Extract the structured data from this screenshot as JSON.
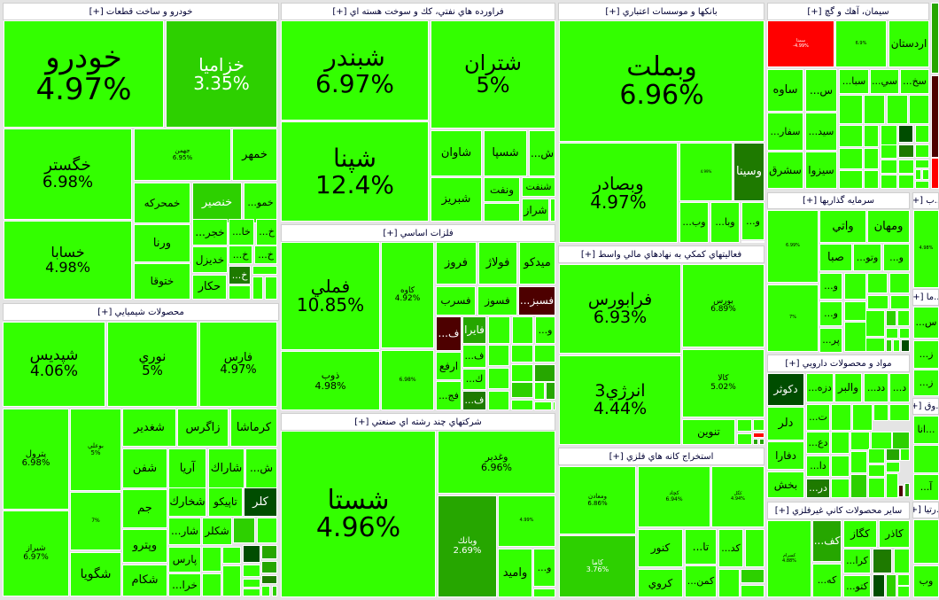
{
  "tones": {
    "b": "#33ff00",
    "m": "#2dd000",
    "g": "#26a600",
    "d": "#1e7a00",
    "x": "#004d00",
    "r": "#ff0000",
    "n": "#4d0000"
  },
  "sectors": [
    {
      "title": "خودرو و ساخت قطعات [+]",
      "tiles": [
        {
          "label": "خودرو",
          "pct": "4.97%",
          "tone": "b"
        },
        {
          "label": "خزاميا",
          "pct": "3.35%",
          "tone": "m"
        },
        {
          "label": "خگستر",
          "pct": "6.98%",
          "tone": "b"
        },
        {
          "label": "خسابا",
          "pct": "4.98%",
          "tone": "b"
        },
        {
          "label": "جهمن",
          "pct": "6.95%",
          "tone": "b"
        },
        {
          "label": "خمهر",
          "tone": "b"
        },
        {
          "label": "خمحركه",
          "tone": "b"
        },
        {
          "label": "خنصير",
          "tone": "m"
        },
        {
          "label": "خمو...",
          "tone": "b"
        },
        {
          "label": "ورنا",
          "tone": "b"
        },
        {
          "label": "ختوقا",
          "tone": "b"
        },
        {
          "label": "خجر...",
          "tone": "b"
        },
        {
          "label": "خا...",
          "tone": "b"
        },
        {
          "label": "خ...",
          "tone": "b"
        },
        {
          "label": "خديزل",
          "tone": "b"
        },
        {
          "label": "خ...",
          "tone": "b"
        },
        {
          "label": "خ...",
          "tone": "b"
        },
        {
          "label": "خ...",
          "tone": "d"
        },
        {
          "label": "حكار",
          "tone": "b"
        }
      ]
    },
    {
      "title": "محصولات شيميايي [+]",
      "tiles": [
        {
          "label": "شپديس",
          "pct": "4.06%",
          "tone": "b"
        },
        {
          "label": "نوري",
          "pct": "5%",
          "tone": "b"
        },
        {
          "label": "فارس",
          "pct": "4.97%",
          "tone": "b"
        },
        {
          "label": "پترول",
          "pct": "6.98%",
          "tone": "b"
        },
        {
          "label": "شيراز",
          "pct": "6.97%",
          "tone": "b"
        },
        {
          "label": "بوعلي",
          "pct": "5%",
          "tone": "b"
        },
        {
          "pct": "7%",
          "tone": "b"
        },
        {
          "label": "شگويا",
          "tone": "b"
        },
        {
          "label": "شغدير",
          "tone": "b"
        },
        {
          "label": "زاگرس",
          "tone": "b"
        },
        {
          "label": "كرماشا",
          "tone": "b"
        },
        {
          "label": "شفن",
          "tone": "b"
        },
        {
          "label": "آريا",
          "tone": "b"
        },
        {
          "label": "شاراك",
          "tone": "b"
        },
        {
          "label": "ش...",
          "tone": "b"
        },
        {
          "label": "جم",
          "tone": "b"
        },
        {
          "label": "شخارك",
          "tone": "b"
        },
        {
          "label": "تاپيكو",
          "tone": "b"
        },
        {
          "label": "كلر",
          "tone": "x"
        },
        {
          "label": "وپترو",
          "tone": "b"
        },
        {
          "label": "شكام",
          "tone": "b"
        },
        {
          "label": "شار...",
          "tone": "b"
        },
        {
          "label": "شكلر",
          "tone": "b"
        },
        {
          "label": "پارس",
          "tone": "b"
        },
        {
          "label": "خرا...",
          "tone": "b"
        }
      ]
    },
    {
      "title": "فراورده هاي نفتي، كك و سوخت هسته اي [+]",
      "tiles": [
        {
          "label": "شبندر",
          "pct": "6.97%",
          "tone": "b"
        },
        {
          "label": "شپنا",
          "pct": "12.4%",
          "tone": "b"
        },
        {
          "label": "شتران",
          "pct": "5%",
          "tone": "b"
        },
        {
          "label": "شاوان",
          "tone": "b"
        },
        {
          "label": "شسپا",
          "tone": "b"
        },
        {
          "label": "ش...",
          "tone": "b"
        },
        {
          "label": "شبريز",
          "tone": "b"
        },
        {
          "label": "ونفت",
          "tone": "b"
        },
        {
          "label": "شنفت",
          "tone": "b"
        },
        {
          "label": "شراز",
          "tone": "b"
        }
      ]
    },
    {
      "title": "فلزات اساسي [+]",
      "tiles": [
        {
          "label": "فملي",
          "pct": "10.85%",
          "tone": "b"
        },
        {
          "label": "ذوب",
          "pct": "4.98%",
          "tone": "b"
        },
        {
          "label": "كاوه",
          "pct": "4.92%",
          "tone": "b"
        },
        {
          "pct": "6.98%",
          "tone": "b"
        },
        {
          "label": "فروز",
          "tone": "b"
        },
        {
          "label": "فولاژ",
          "tone": "b"
        },
        {
          "label": "ميدكو",
          "tone": "b"
        },
        {
          "label": "فسرب",
          "tone": "b"
        },
        {
          "label": "فسوز",
          "tone": "b"
        },
        {
          "label": "فسبز...",
          "tone": "n"
        },
        {
          "label": "ف...",
          "tone": "n"
        },
        {
          "label": "فايرا",
          "tone": "g"
        },
        {
          "label": "و...",
          "tone": "b"
        },
        {
          "label": "ارفع",
          "tone": "b"
        },
        {
          "label": "فج...",
          "tone": "b"
        },
        {
          "label": "ف...",
          "tone": "b"
        },
        {
          "label": "ك...",
          "tone": "b"
        },
        {
          "label": "ف...",
          "tone": "d"
        }
      ]
    },
    {
      "title": "شركتهاي چند رشته اي صنعتي [+]",
      "tiles": [
        {
          "label": "شستا",
          "pct": "4.96%",
          "tone": "b"
        },
        {
          "label": "وغدير",
          "pct": "6.96%",
          "tone": "b"
        },
        {
          "label": "وبانك",
          "pct": "2.69%",
          "tone": "g"
        },
        {
          "pct": "4.99%",
          "tone": "b"
        },
        {
          "label": "واميد",
          "tone": "b"
        },
        {
          "label": "و...",
          "tone": "b"
        }
      ]
    },
    {
      "title": "بانكها و موسسات اعتباري [+]",
      "tiles": [
        {
          "label": "وبملت",
          "pct": "6.96%",
          "tone": "b"
        },
        {
          "label": "وبصادر",
          "pct": "4.97%",
          "tone": "b"
        },
        {
          "pct": "4.99%",
          "tone": "b"
        },
        {
          "label": "وسينا",
          "tone": "d"
        },
        {
          "label": "وب...",
          "tone": "b"
        },
        {
          "label": "وبا...",
          "tone": "b"
        },
        {
          "label": "و...",
          "tone": "b"
        }
      ]
    },
    {
      "title": "فعاليتهاي كمكي به نهادهاي مالي واسط [+]",
      "tiles": [
        {
          "label": "فرابورس",
          "pct": "6.93%",
          "tone": "b"
        },
        {
          "label": "انرژي3",
          "pct": "4.44%",
          "tone": "b"
        },
        {
          "label": "بورس",
          "pct": "6.89%",
          "tone": "b"
        },
        {
          "label": "كالا",
          "pct": "5.02%",
          "tone": "b"
        },
        {
          "label": "تنوين",
          "tone": "b"
        }
      ]
    },
    {
      "title": "استخراج كانه هاي فلزي [+]",
      "tiles": [
        {
          "label": "ومعادن",
          "pct": "6.86%",
          "tone": "b"
        },
        {
          "label": "كاما",
          "pct": "3.76%",
          "tone": "m"
        },
        {
          "label": "كچاد",
          "pct": "6.94%",
          "tone": "b"
        },
        {
          "label": "كگل",
          "pct": "4.94%",
          "tone": "b"
        },
        {
          "label": "كنور",
          "tone": "b"
        },
        {
          "label": "كروي",
          "tone": "b"
        },
        {
          "label": "تا...",
          "tone": "b"
        },
        {
          "label": "كمن...",
          "tone": "b"
        },
        {
          "label": "كد...",
          "tone": "b"
        }
      ]
    },
    {
      "title": "سيمان، آهك و گچ [+]",
      "tiles": [
        {
          "label": "سمتا",
          "pct": "-4.99%",
          "tone": "r"
        },
        {
          "pct": "6.9%",
          "tone": "b"
        },
        {
          "label": "اردستان",
          "tone": "b"
        },
        {
          "label": "ساوه",
          "tone": "b"
        },
        {
          "label": "س...",
          "tone": "b"
        },
        {
          "label": "سبا...",
          "tone": "b"
        },
        {
          "label": "سي...",
          "tone": "b"
        },
        {
          "label": "سخ...",
          "tone": "b"
        },
        {
          "label": "سفار...",
          "tone": "b"
        },
        {
          "label": "سيد...",
          "tone": "b"
        },
        {
          "label": "سشرق",
          "tone": "b"
        },
        {
          "label": "سيزوا",
          "tone": "b"
        }
      ]
    },
    {
      "title": "سرمايه گذاريها [+]",
      "tiles": [
        {
          "pct": "6.99%",
          "tone": "b"
        },
        {
          "pct": "7%",
          "tone": "b"
        },
        {
          "label": "واتي",
          "tone": "b"
        },
        {
          "label": "ومهان",
          "tone": "b"
        },
        {
          "label": "صبا",
          "tone": "b"
        },
        {
          "label": "وتو...",
          "tone": "b"
        },
        {
          "label": "و...",
          "tone": "b"
        },
        {
          "label": "و...",
          "tone": "b"
        },
        {
          "label": "و...",
          "tone": "b"
        },
        {
          "label": "پر...",
          "tone": "b"
        }
      ]
    },
    {
      "title": "مواد و محصولات دارويي [+]",
      "tiles": [
        {
          "label": "دكوثر",
          "tone": "x"
        },
        {
          "label": "دزه...",
          "tone": "b"
        },
        {
          "label": "والبر",
          "tone": "b"
        },
        {
          "label": "دد...",
          "tone": "b"
        },
        {
          "label": "د...",
          "tone": "b"
        },
        {
          "label": "دلر",
          "tone": "b"
        },
        {
          "label": "دفارا",
          "tone": "b"
        },
        {
          "label": "بخش",
          "tone": "b"
        },
        {
          "label": "ت...",
          "tone": "b"
        },
        {
          "label": "دع...",
          "tone": "b"
        },
        {
          "label": "دا...",
          "tone": "b"
        },
        {
          "label": "در...",
          "tone": "d"
        }
      ]
    },
    {
      "title": "ساير محصولات كاني غيرفلزي [+]",
      "tiles": [
        {
          "label": "كسرام",
          "pct": "4.88%",
          "tone": "b"
        },
        {
          "label": "كف...",
          "tone": "g"
        },
        {
          "label": "كه...",
          "tone": "b"
        },
        {
          "label": "كگاز",
          "tone": "b"
        },
        {
          "label": "كاذر",
          "tone": "b"
        },
        {
          "label": "كرا...",
          "tone": "b"
        },
        {
          "label": "كتو...",
          "tone": "b"
        }
      ]
    },
    {
      "title": "...ب [+]",
      "tiles": [
        {
          "pct": "4.98%",
          "tone": "b"
        }
      ]
    },
    {
      "title": "...ما [+]",
      "tiles": [
        {
          "label": "س...",
          "tone": "b"
        },
        {
          "label": "ز...",
          "tone": "b"
        },
        {
          "label": "ز...",
          "tone": "b"
        }
      ]
    },
    {
      "title": "...وق [+]",
      "tiles": [
        {
          "label": "...انا",
          "tone": "b"
        },
        {
          "label": "آ...",
          "tone": "b"
        }
      ]
    },
    {
      "title": "...رتيا [+]",
      "tiles": [
        {
          "tone": "b"
        },
        {
          "label": "وب",
          "tone": "b"
        }
      ]
    }
  ]
}
